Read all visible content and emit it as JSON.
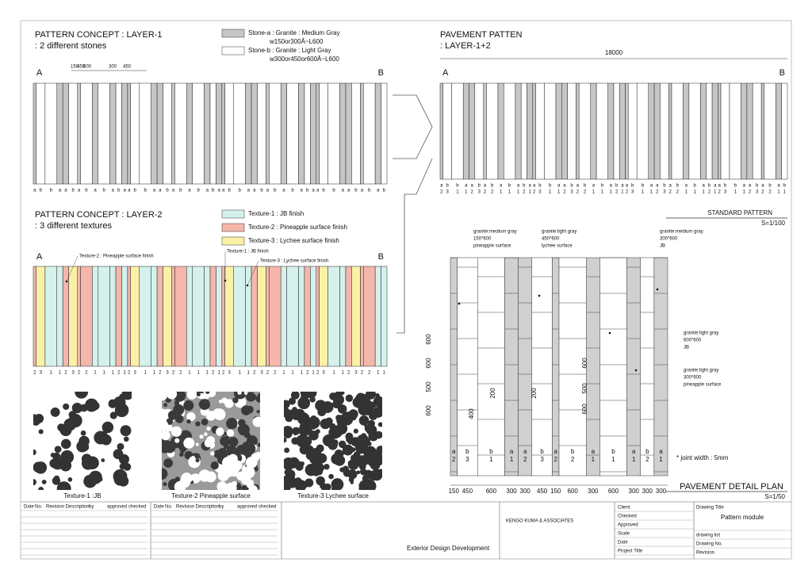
{
  "layer1": {
    "title": "PATTERN CONCEPT : LAYER-1",
    "subtitle": ": 2 different stones",
    "dims": [
      150,
      450,
      600,
      300,
      450
    ],
    "ends": [
      "A",
      "B"
    ]
  },
  "stone_legend": [
    {
      "name": "Stone-a : Granite : Medium Gray",
      "size": "w150or300Â~L600",
      "color": "#c6c6c6"
    },
    {
      "name": "Stone-b : Granite : Light Gray",
      "size": "w300or450or600Â~L600",
      "color": "#ffffff"
    }
  ],
  "layer2": {
    "title": "PATTERN CONCEPT : LAYER-2",
    "subtitle": ": 3 different textures",
    "callouts": [
      "Texture-2 : Pineapple surface finish",
      "Texture-1 : JB finish",
      "Texture-3 : Lychee surface finish"
    ]
  },
  "texture_legend": [
    {
      "name": "Texture-1 : JB finish",
      "color": "#d5f1ec"
    },
    {
      "name": "Texture-2 : Pineapple surface finish",
      "color": "#f5b7ab"
    },
    {
      "name": "Texture-3 : Lychee surface finish",
      "color": "#fbf1a6"
    }
  ],
  "stripes": {
    "widths": [
      150,
      450,
      600,
      300,
      300,
      450,
      150,
      600,
      300,
      600,
      300,
      300,
      300,
      150,
      450,
      600,
      300,
      300,
      450,
      150,
      600,
      300,
      600,
      300,
      300,
      300,
      150,
      450,
      600,
      300,
      300,
      450,
      150,
      600,
      300,
      600,
      300,
      300,
      300,
      150,
      450,
      600,
      300,
      300,
      450,
      150,
      600,
      300,
      300
    ],
    "stones": [
      "a",
      "b",
      "b",
      "a",
      "a",
      "b",
      "a",
      "b",
      "a",
      "b",
      "a",
      "b",
      "a",
      "a",
      "b",
      "b",
      "a",
      "a",
      "b",
      "a",
      "b",
      "a",
      "b",
      "a",
      "b",
      "a",
      "a",
      "b",
      "b",
      "a",
      "a",
      "b",
      "a",
      "b",
      "a",
      "b",
      "a",
      "b",
      "a",
      "a",
      "b",
      "b",
      "a",
      "a",
      "b",
      "a",
      "b",
      "a",
      "b"
    ],
    "textures": [
      2,
      3,
      1,
      1,
      2,
      3,
      2,
      2,
      1,
      1,
      1,
      2,
      1,
      2,
      3,
      1,
      1,
      2,
      3,
      2,
      2,
      1,
      1,
      1,
      2,
      1,
      2,
      3,
      1,
      1,
      2,
      3,
      2,
      2,
      1,
      1,
      1,
      2,
      1,
      2,
      3,
      1,
      1,
      2,
      3,
      2,
      2,
      1,
      1
    ]
  },
  "texture_images": [
    "Texture-1 :JB",
    "Texture-2 Pineapple surface",
    "Texture-3 Lychee surface"
  ],
  "pavement": {
    "title": "PAVEMENT PATTEN",
    "subtitle": ": LAYER-1+2",
    "total": 18000,
    "standard": "STANDARD PATTERN",
    "scale": "S=1/100"
  },
  "detail": {
    "callouts": [
      [
        "granite:medium gray",
        "150*600",
        "pineapple surface"
      ],
      [
        "granite:light gray",
        "450*600",
        "lychee surface"
      ],
      [
        "granite:medium gray",
        "300*600",
        "JB"
      ],
      [
        "granite:light gray",
        "600*600",
        "JB"
      ],
      [
        "granite:light gray",
        "300*600",
        "pineapple surface"
      ]
    ],
    "left_dims": [
      600,
      600,
      500,
      600
    ],
    "inner_dims": [
      200,
      400,
      200,
      500,
      600,
      600
    ],
    "note": "* joint width : 5mm",
    "title": "PAVEMENT DETAIL PLAN",
    "scale": "S=1/50"
  },
  "title_block": {
    "revision_headers": [
      "Date",
      "No.",
      "Revision Description",
      "by",
      "approved",
      "checked"
    ],
    "office": "KENGO KUMA & ASSOCIATES",
    "stage": "Exterior Design Development",
    "fields": [
      "Client",
      "Checked",
      "Approved",
      "Scale",
      "Date",
      "Project Title"
    ],
    "drawing_title_label": "Drawing Title",
    "drawing_title": "Pattern module",
    "right_fields": [
      "drawing list",
      "Drawing No.",
      "Revision"
    ]
  }
}
